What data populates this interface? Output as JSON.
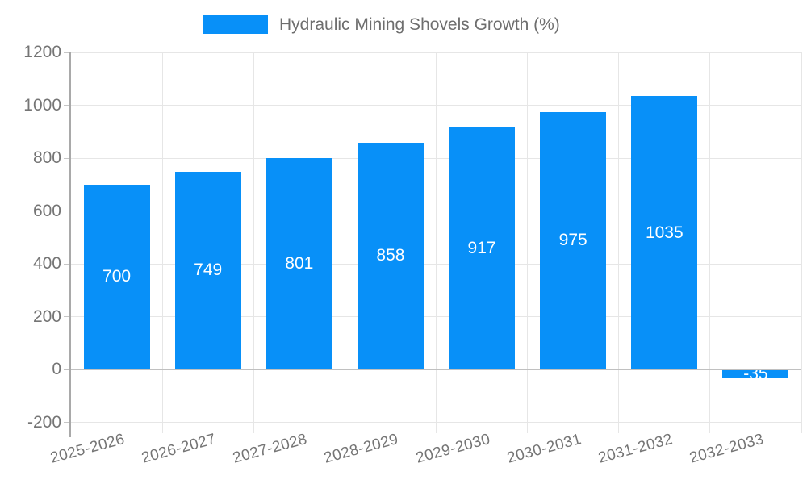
{
  "chart_data": {
    "type": "bar",
    "title": "",
    "legend": {
      "label": "Hydraulic Mining Shovels Growth (%)",
      "position": "top"
    },
    "categories": [
      "2025-2026",
      "2026-2027",
      "2027-2028",
      "2028-2029",
      "2029-2030",
      "2030-2031",
      "2031-2032",
      "2032-2033"
    ],
    "series": [
      {
        "name": "Hydraulic Mining Shovels Growth (%)",
        "values": [
          700,
          749,
          801,
          858,
          917,
          975,
          1035,
          -35
        ]
      }
    ],
    "xlabel": "",
    "ylabel": "",
    "ylim": [
      -200,
      1200
    ],
    "y_ticks": [
      1200,
      1000,
      800,
      600,
      400,
      200,
      0,
      -200
    ],
    "grid": true,
    "bar_value_labels_visible": true,
    "colors": {
      "bar": "#0890f8",
      "bar_value_label": "#ffffff",
      "axis_text": "#757575",
      "legend_text": "#6e6e6e",
      "gridline": "#e6e6e6",
      "zero_line": "#c0c0c0",
      "axis_line": "#a9a9a9",
      "tick_mark": "#c6c6c6",
      "background": "#ffffff"
    }
  }
}
